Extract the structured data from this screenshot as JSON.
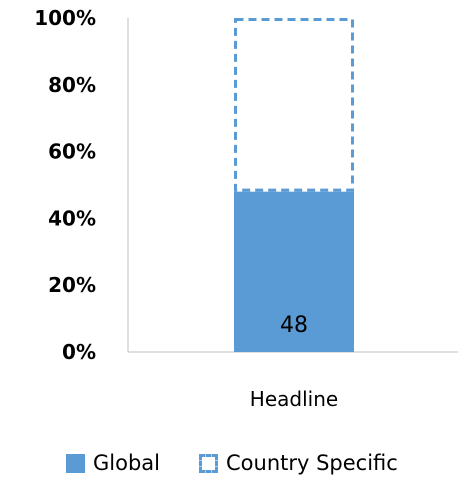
{
  "chart_data": {
    "type": "bar",
    "stacked": true,
    "categories": [
      "Headline"
    ],
    "series": [
      {
        "name": "Global",
        "values": [
          48
        ],
        "style": "solid",
        "color": "#5b9bd5"
      },
      {
        "name": "Country Specific",
        "values": [
          52
        ],
        "style": "dashed-outline",
        "color": "#5b9bd5"
      }
    ],
    "data_labels": [
      {
        "series": "Global",
        "category": "Headline",
        "text": "48"
      }
    ],
    "ylim": [
      0,
      100
    ],
    "y_ticks": [
      "0%",
      "20%",
      "40%",
      "60%",
      "80%",
      "100%"
    ],
    "legend_position": "bottom",
    "grid": false
  }
}
